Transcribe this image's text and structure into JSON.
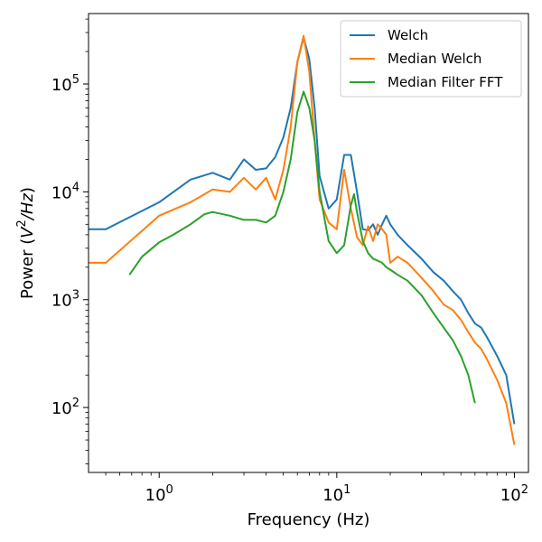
{
  "chart_data": {
    "type": "line",
    "x_scale": "log",
    "y_scale": "log",
    "xlim": [
      0.4,
      120
    ],
    "ylim": [
      25,
      450000
    ],
    "xlabel": "Frequency (Hz)",
    "ylabel": "Power (V²/Hz)",
    "x_ticks": [
      {
        "value": 1,
        "base": "10",
        "exp": "0"
      },
      {
        "value": 10,
        "base": "10",
        "exp": "1"
      },
      {
        "value": 100,
        "base": "10",
        "exp": "2"
      }
    ],
    "y_ticks": [
      {
        "value": 100,
        "base": "10",
        "exp": "2"
      },
      {
        "value": 1000,
        "base": "10",
        "exp": "3"
      },
      {
        "value": 10000,
        "base": "10",
        "exp": "4"
      },
      {
        "value": 100000,
        "base": "10",
        "exp": "5"
      }
    ],
    "grid": false,
    "legend_position": "top-right",
    "series": [
      {
        "name": "Welch",
        "color": "#1f77b4",
        "x": [
          0.4,
          0.5,
          1.0,
          1.5,
          2.0,
          2.5,
          3.0,
          3.5,
          4.0,
          4.5,
          5.0,
          5.5,
          6.0,
          6.5,
          7.0,
          7.5,
          8.0,
          9.0,
          10.0,
          11.0,
          12.0,
          13.0,
          14.0,
          15.0,
          16.0,
          17.0,
          18.0,
          19.0,
          20.0,
          22.0,
          25.0,
          30.0,
          35.0,
          40.0,
          45.0,
          50.0,
          55.0,
          60.0,
          65.0,
          70.0,
          80.0,
          90.0,
          100.0
        ],
        "y": [
          4500,
          4500,
          8000,
          13000,
          15000,
          13000,
          20000,
          16000,
          16500,
          21000,
          32000,
          60000,
          160000,
          270000,
          170000,
          60000,
          14000,
          7000,
          8500,
          22000,
          22000,
          10000,
          4500,
          4400,
          5000,
          4000,
          5000,
          6000,
          5000,
          4000,
          3200,
          2400,
          1800,
          1500,
          1200,
          1000,
          750,
          600,
          550,
          450,
          300,
          200,
          70
        ]
      },
      {
        "name": "Median Welch",
        "color": "#ff7f0e",
        "x": [
          0.4,
          0.5,
          1.0,
          1.5,
          2.0,
          2.5,
          3.0,
          3.5,
          4.0,
          4.5,
          5.0,
          5.5,
          6.0,
          6.5,
          7.0,
          7.5,
          8.0,
          9.0,
          10.0,
          11.0,
          12.0,
          13.0,
          14.0,
          15.0,
          16.0,
          17.0,
          18.0,
          19.0,
          20.0,
          22.0,
          25.0,
          30.0,
          35.0,
          40.0,
          45.0,
          50.0,
          55.0,
          60.0,
          65.0,
          70.0,
          80.0,
          90.0,
          100.0
        ],
        "y": [
          2200,
          2200,
          6000,
          8000,
          10500,
          10000,
          13500,
          10500,
          13500,
          8500,
          16000,
          40000,
          160000,
          280000,
          130000,
          30000,
          8500,
          5200,
          4500,
          16000,
          7000,
          3800,
          3200,
          4800,
          3500,
          5000,
          4500,
          4000,
          2200,
          2500,
          2200,
          1600,
          1200,
          900,
          800,
          650,
          500,
          400,
          350,
          280,
          180,
          110,
          45
        ]
      },
      {
        "name": "Median Filter FFT",
        "color": "#2ca02c",
        "x": [
          0.68,
          0.8,
          1.0,
          1.2,
          1.5,
          1.8,
          2.0,
          2.5,
          3.0,
          3.5,
          4.0,
          4.5,
          5.0,
          5.5,
          6.0,
          6.5,
          7.0,
          7.5,
          8.0,
          9.0,
          10.0,
          11.0,
          12.0,
          12.5,
          13.0,
          14.0,
          15.0,
          16.0,
          17.0,
          18.0,
          19.0,
          20.0,
          22.0,
          25.0,
          30.0,
          35.0,
          40.0,
          45.0,
          50.0,
          55.0,
          60.0
        ],
        "y": [
          1700,
          2500,
          3400,
          4000,
          5000,
          6200,
          6500,
          6000,
          5500,
          5500,
          5200,
          6000,
          10000,
          20000,
          55000,
          85000,
          60000,
          30000,
          10000,
          3500,
          2700,
          3200,
          7500,
          9500,
          6500,
          3500,
          2700,
          2400,
          2300,
          2200,
          2000,
          1900,
          1700,
          1500,
          1100,
          750,
          550,
          420,
          300,
          200,
          110
        ]
      }
    ]
  }
}
